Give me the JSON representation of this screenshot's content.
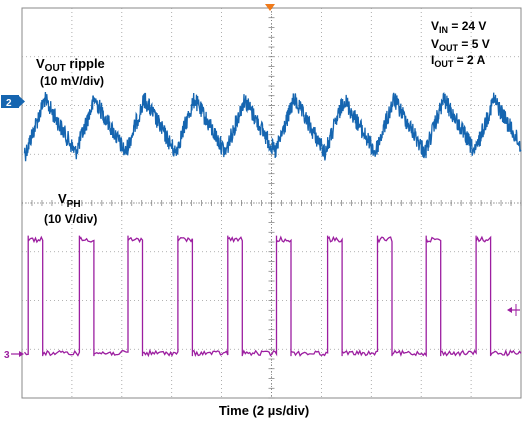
{
  "chart_data": {
    "type": "line",
    "title": "",
    "xlabel": "Time (2 µs/div)",
    "ylabel": "",
    "grid": true,
    "grid_divisions": {
      "horizontal": 10,
      "vertical": 8
    },
    "x_unit": "µs",
    "x_per_div_us": 2,
    "xlim_us": [
      0,
      20
    ],
    "conditions": {
      "vin": {
        "main": "V",
        "sub": "IN",
        "rest": " = 24 V"
      },
      "vout": {
        "main": "V",
        "sub": "OUT",
        "rest": " = 5 V"
      },
      "iout": {
        "main": "I",
        "sub": "OUT",
        "rest": " = 2 A"
      }
    },
    "series": [
      {
        "name": "VOUT ripple",
        "label_main": "V",
        "label_sub": "OUT",
        "label_rest": " ripple",
        "scale_label": "(10 mV/div)",
        "channel_marker": "2",
        "color": "#1565b0",
        "waveform": "triangle",
        "period_us": 2.0,
        "phase_us": 0.15,
        "amplitude_pp_mv": 10,
        "offset_div": 0.0,
        "noise_div": 0.18,
        "x_start_us": 0.1
      },
      {
        "name": "VPH",
        "label_main": "V",
        "label_sub": "PH",
        "scale_label": "(10 V/div)",
        "channel_marker": "3",
        "color": "#9c1ea0",
        "waveform": "square",
        "period_us": 2.0,
        "high_starts_us": [
          0.25,
          2.3,
          4.25,
          6.25,
          8.25,
          10.2,
          12.25,
          14.25,
          16.2,
          18.2
        ],
        "high_width_us": 0.58,
        "low_v": 0,
        "high_v": 24,
        "noise_div": 0.05,
        "x_start_us": 0.1
      }
    ]
  }
}
